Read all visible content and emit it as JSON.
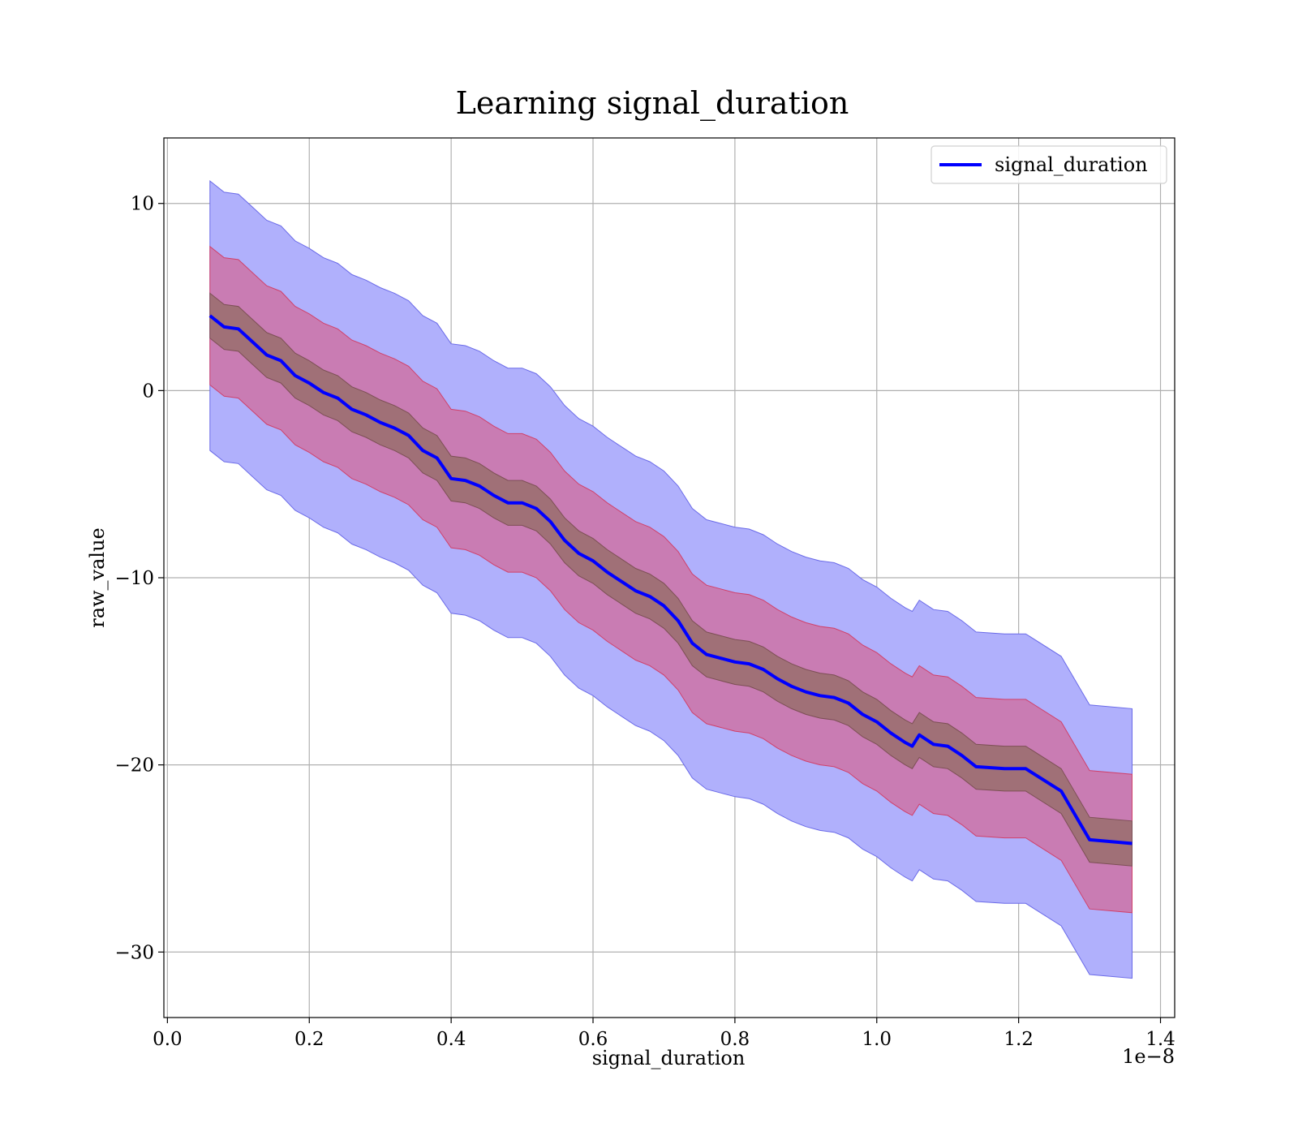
{
  "chart_data": {
    "type": "line",
    "title": "Learning signal_duration",
    "xlabel": "signal_duration",
    "ylabel": "raw_value",
    "x_offset_label": "1e−8",
    "xlim": [
      -0.005,
      1.42
    ],
    "ylim": [
      -33.5,
      13.5
    ],
    "x_scale_factor": 1e-08,
    "x_ticks": [
      0.0,
      0.2,
      0.4,
      0.6,
      0.8,
      1.0,
      1.2,
      1.4
    ],
    "x_tick_labels": [
      "0.0",
      "0.2",
      "0.4",
      "0.6",
      "0.8",
      "1.0",
      "1.2",
      "1.4"
    ],
    "y_ticks": [
      10,
      0,
      -10,
      -20,
      -30
    ],
    "y_tick_labels": [
      "10",
      "0",
      "−10",
      "−20",
      "−30"
    ],
    "grid": true,
    "legend_position": "top-right",
    "series": [
      {
        "name": "signal_duration",
        "color": "#0000ff",
        "x": [
          0.06,
          0.08,
          0.1,
          0.12,
          0.14,
          0.16,
          0.18,
          0.2,
          0.22,
          0.24,
          0.26,
          0.28,
          0.3,
          0.32,
          0.34,
          0.36,
          0.38,
          0.4,
          0.42,
          0.44,
          0.46,
          0.48,
          0.5,
          0.52,
          0.54,
          0.56,
          0.58,
          0.6,
          0.62,
          0.64,
          0.66,
          0.68,
          0.7,
          0.72,
          0.74,
          0.76,
          0.78,
          0.8,
          0.82,
          0.84,
          0.86,
          0.88,
          0.9,
          0.92,
          0.94,
          0.96,
          0.98,
          1.0,
          1.02,
          1.04,
          1.05,
          1.06,
          1.08,
          1.1,
          1.12,
          1.14,
          1.18,
          1.21,
          1.26,
          1.3,
          1.36
        ],
        "values": [
          4.0,
          3.4,
          3.3,
          2.6,
          1.9,
          1.6,
          0.8,
          0.4,
          -0.1,
          -0.4,
          -1.0,
          -1.3,
          -1.7,
          -2.0,
          -2.4,
          -3.2,
          -3.6,
          -4.7,
          -4.8,
          -5.1,
          -5.6,
          -6.0,
          -6.0,
          -6.3,
          -7.0,
          -8.0,
          -8.7,
          -9.1,
          -9.7,
          -10.2,
          -10.7,
          -11.0,
          -11.5,
          -12.3,
          -13.5,
          -14.1,
          -14.3,
          -14.5,
          -14.6,
          -14.9,
          -15.4,
          -15.8,
          -16.1,
          -16.3,
          -16.4,
          -16.7,
          -17.3,
          -17.7,
          -18.3,
          -18.8,
          -19.0,
          -18.4,
          -18.9,
          -19.0,
          -19.5,
          -20.1,
          -20.2,
          -20.2,
          -21.4,
          -24.0,
          -24.2
        ],
        "band_inner_halfwidth": 1.2,
        "band_mid_halfwidth": 3.7,
        "band_outer_halfwidth": 7.2
      }
    ]
  },
  "colors": {
    "outer_band": "#b0b0fc",
    "outer_band_edge": "#6a6ae8",
    "mid_band": "#c97cb3",
    "mid_band_edge": "#d0406a",
    "inner_band": "#a07077",
    "inner_band_edge": "#7c4f55",
    "line": "#0000ff",
    "grid": "#b0b0b0"
  }
}
